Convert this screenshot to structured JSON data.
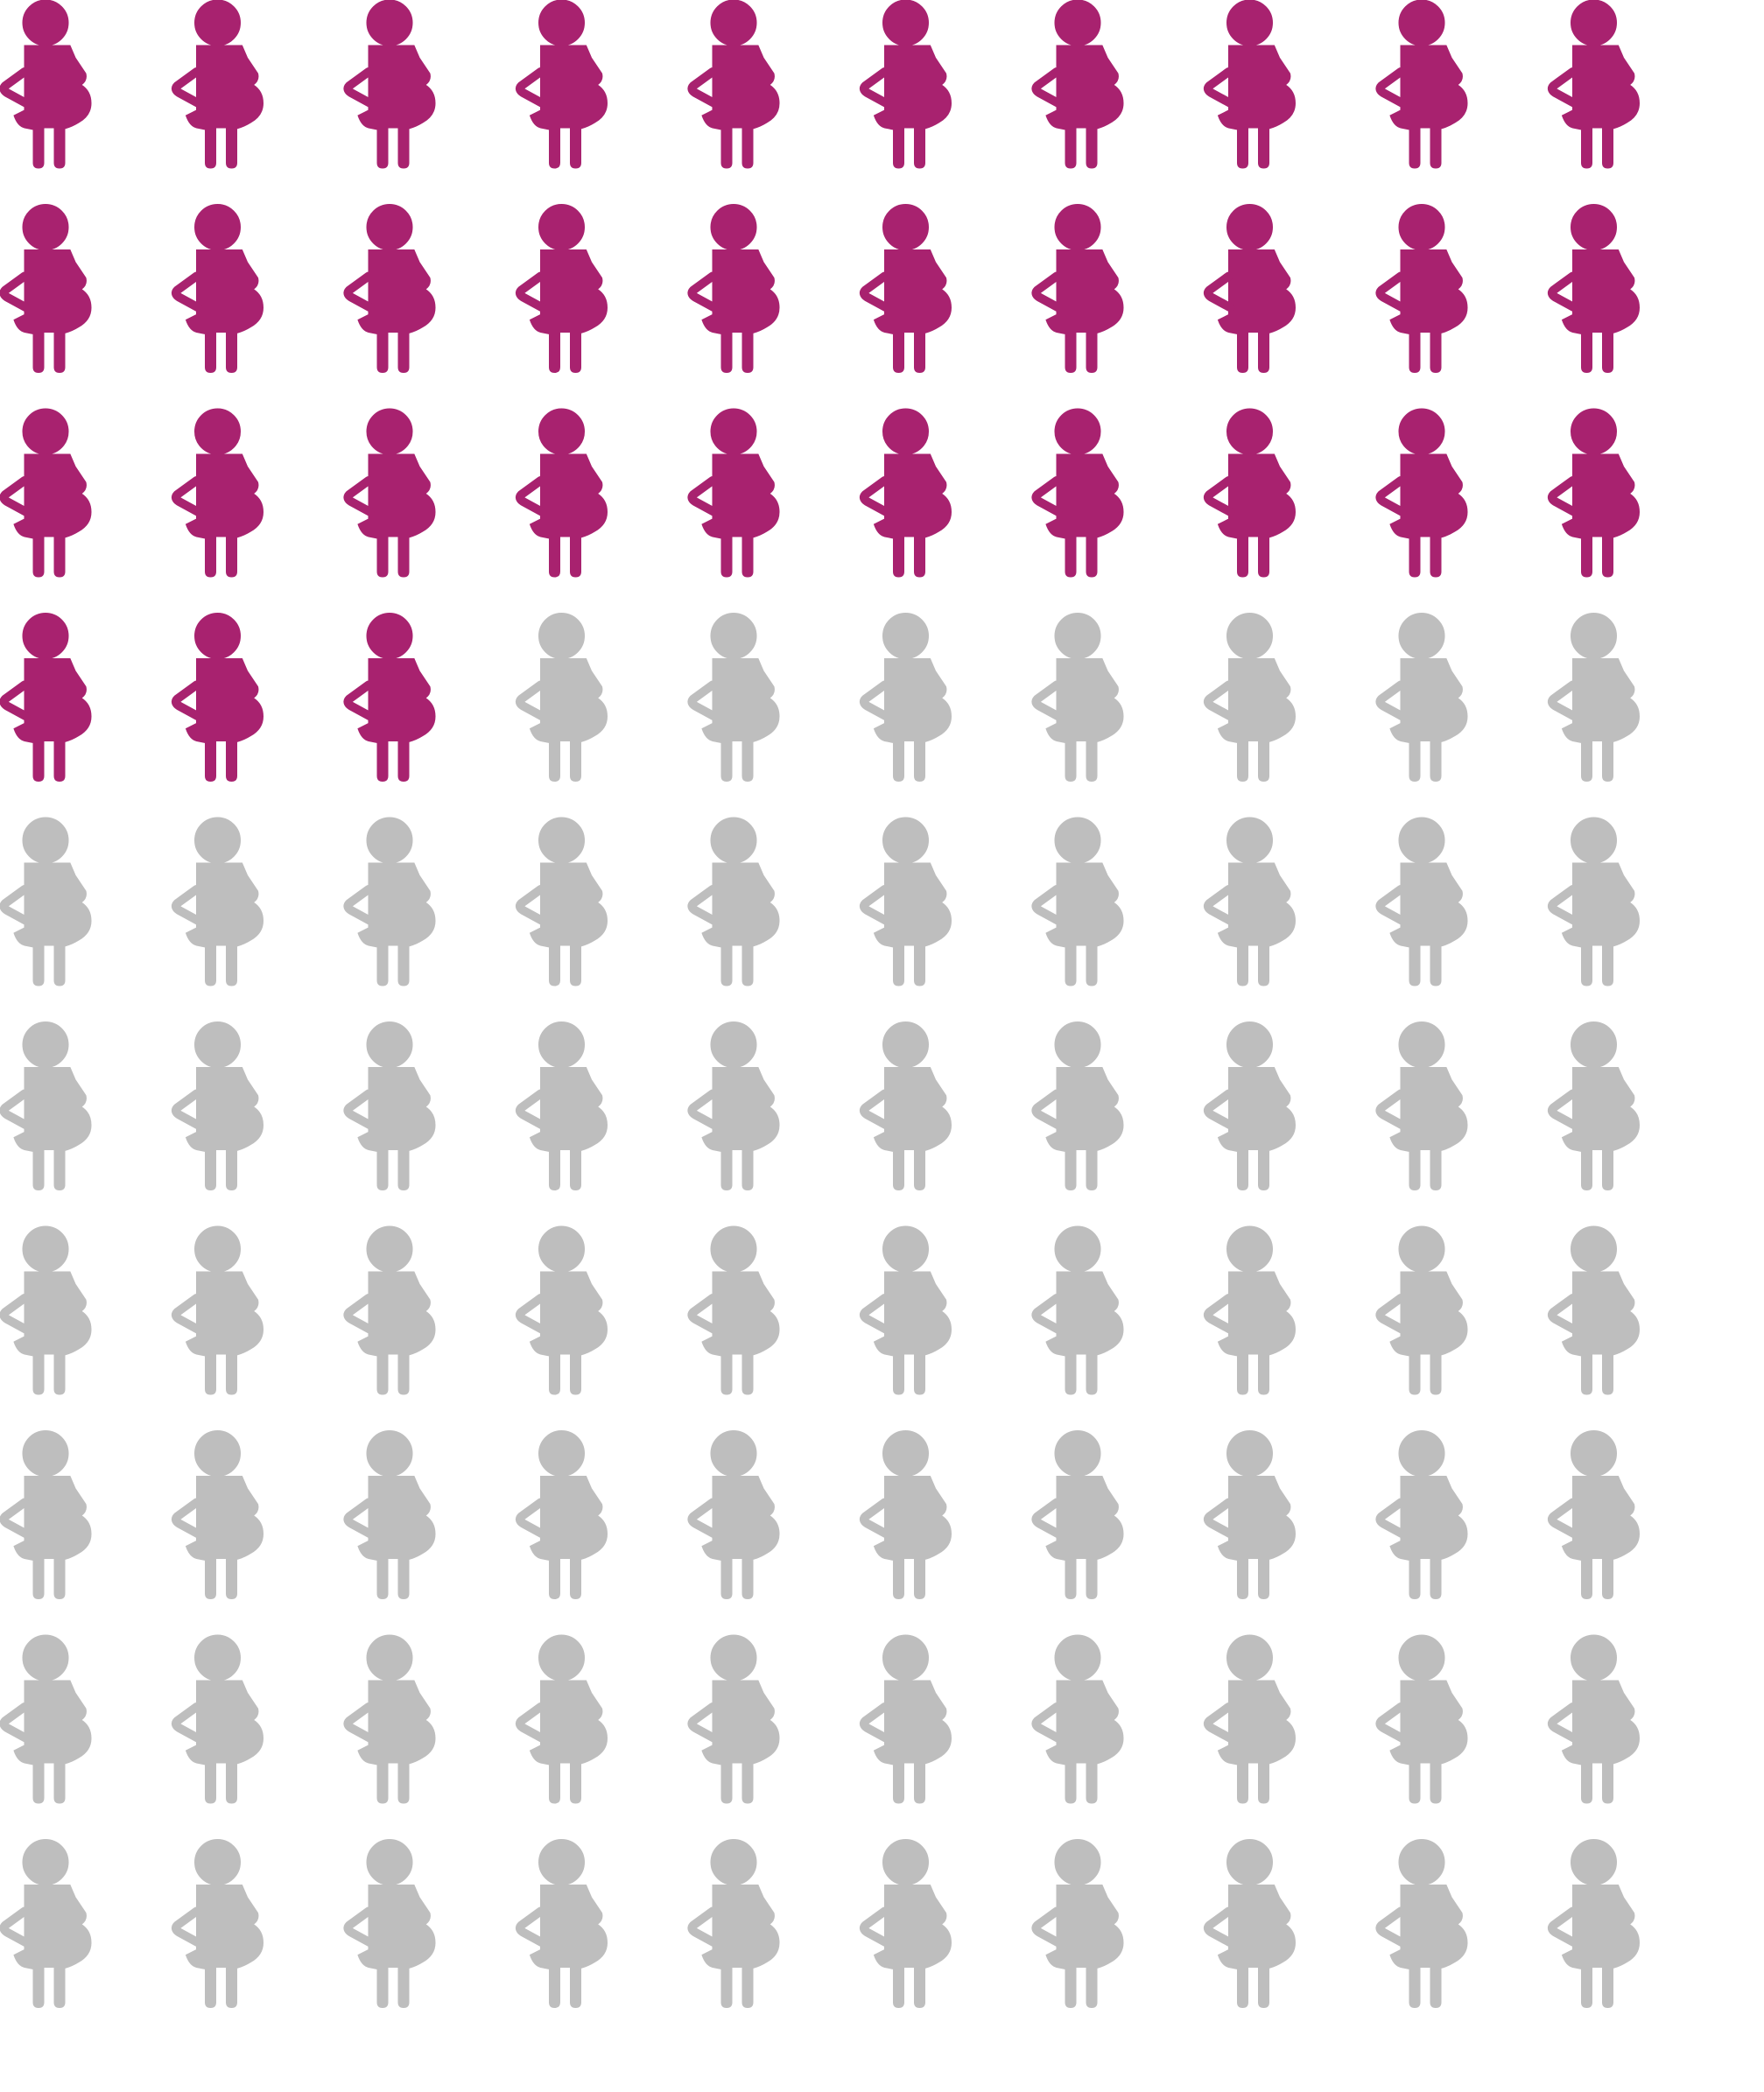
{
  "chart_data": {
    "type": "pictogram",
    "rows": 10,
    "columns": 10,
    "total": 100,
    "highlighted": 33,
    "icon": "pregnant-woman-icon",
    "fill_order": "row-major",
    "colors": {
      "highlighted": "#A8226F",
      "base": "#BEBEBE"
    }
  }
}
